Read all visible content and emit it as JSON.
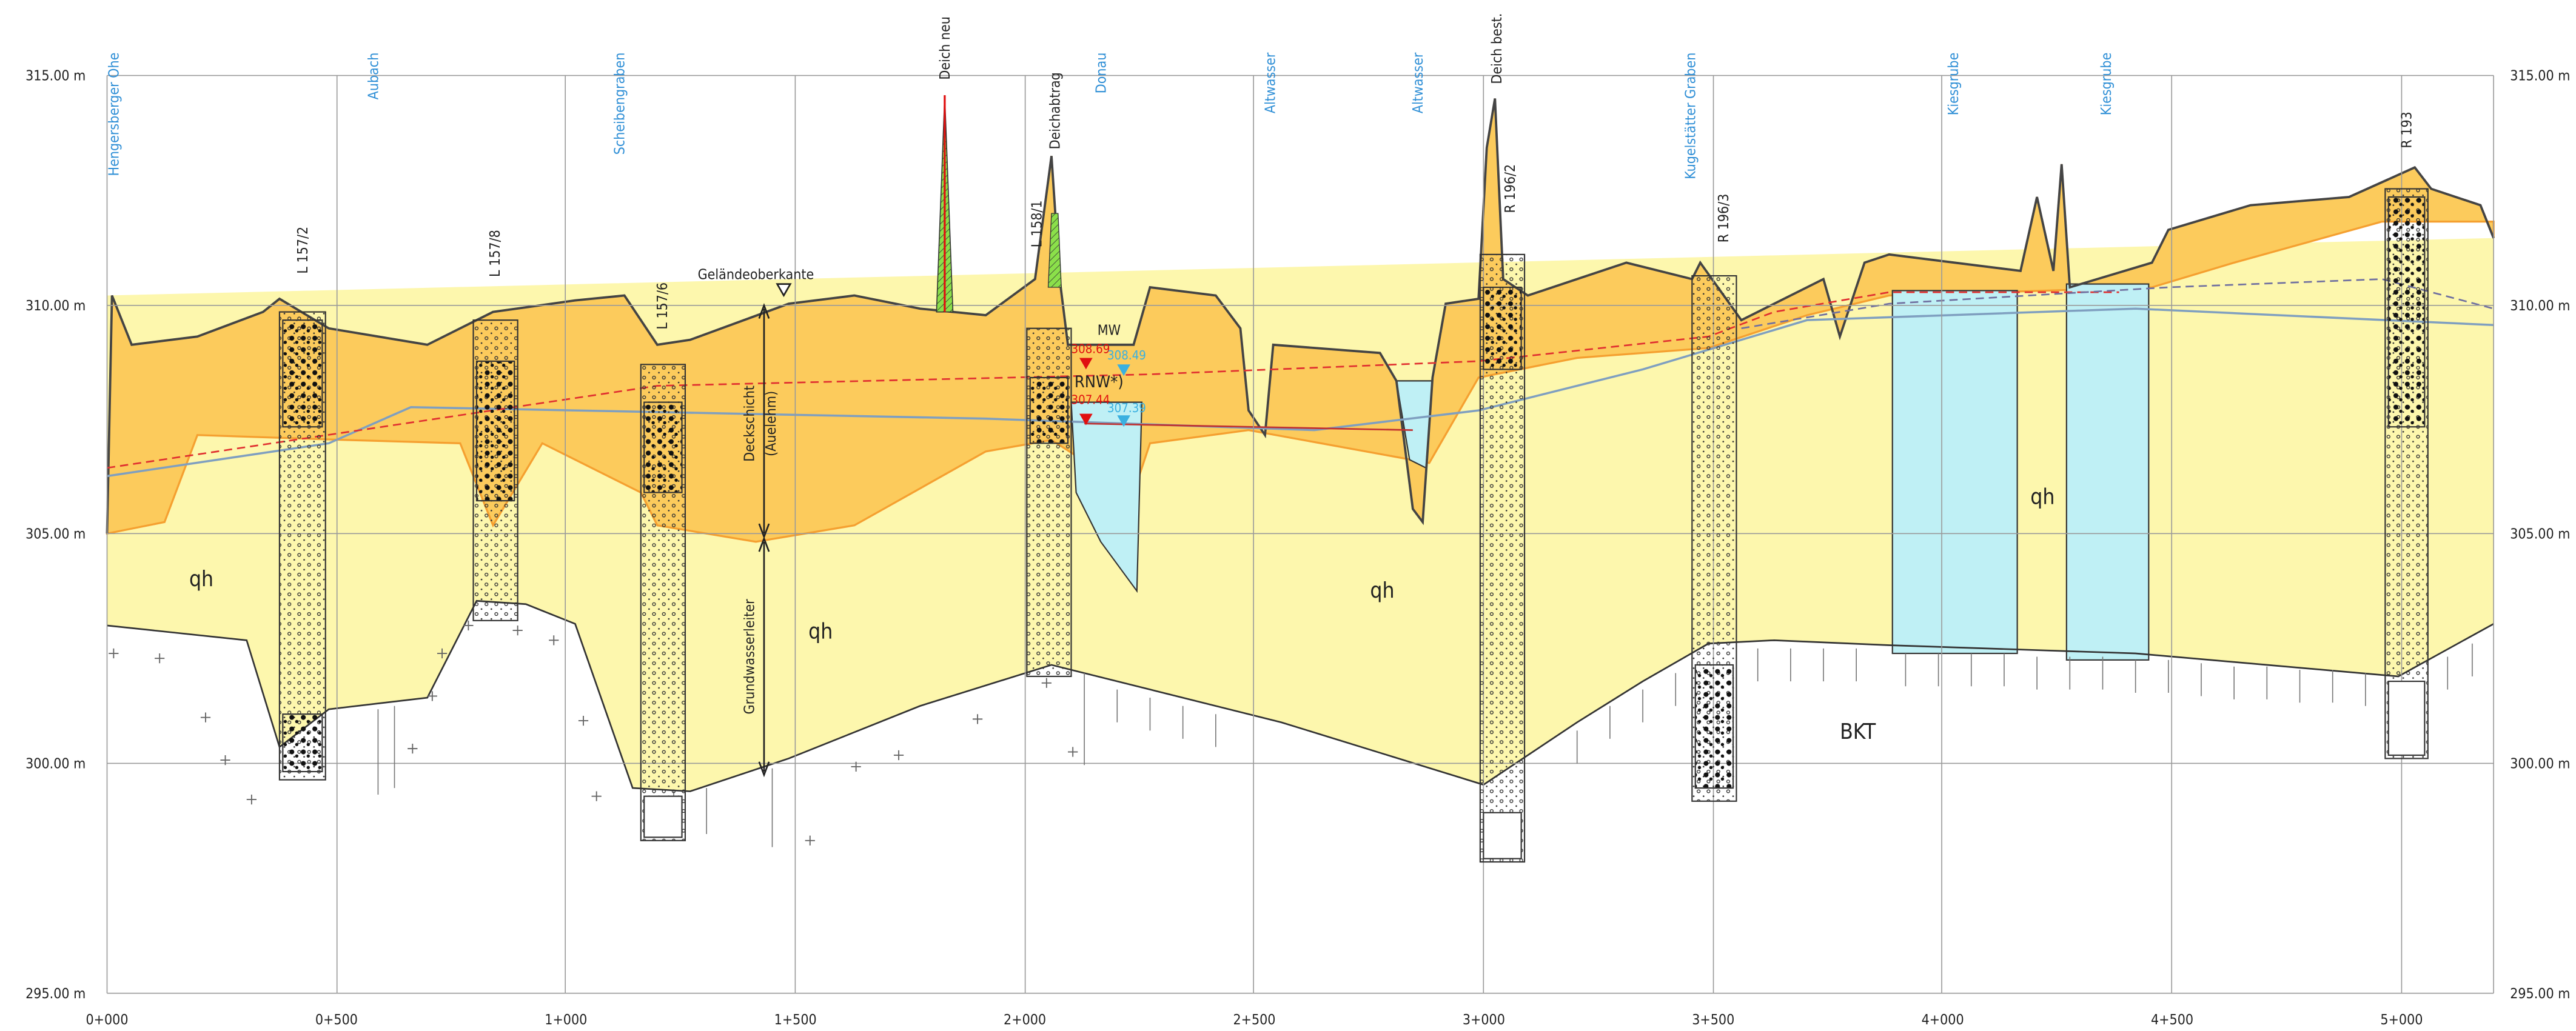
{
  "axis": {
    "elevation_labels": [
      "315.00 m",
      "310.00 m",
      "305.00 m",
      "300.00 m",
      "295.00 m"
    ],
    "station_labels": [
      "0+000",
      "0+500",
      "1+000",
      "1+500",
      "2+000",
      "2+500",
      "3+000",
      "3+500",
      "4+000",
      "4+500",
      "5+000"
    ]
  },
  "watercourses": [
    "Hengersberger Ohe",
    "Aubach",
    "Scheibengraben",
    "Donau",
    "Altwasser",
    "Altwasser",
    "Kugelstätter Graben",
    "Kiesgrube",
    "Kiesgrube"
  ],
  "structures": [
    "Deich neu",
    "Deichabtrag",
    "Deich best."
  ],
  "boreholes": [
    "L 157/2",
    "L 157/8",
    "L 157/6",
    "L 158/1",
    "R 196/2",
    "R 196/3",
    "R 193"
  ],
  "annotations": {
    "ground_surface": "Geländeoberkante",
    "cover_layer": "Deckschicht",
    "cover_material": "(Auelehm)",
    "aquifer": "Grundwasserleiter",
    "mean_water": "MW",
    "low_water": "RNW*)",
    "bedrock": "BKT"
  },
  "water_levels": {
    "mw_design": "308.69",
    "mw_measured": "308.49",
    "rnw_design": "307.44",
    "rnw_measured": "307.39"
  },
  "unit_labels": [
    "qh",
    "qh",
    "qh",
    "qh"
  ]
}
